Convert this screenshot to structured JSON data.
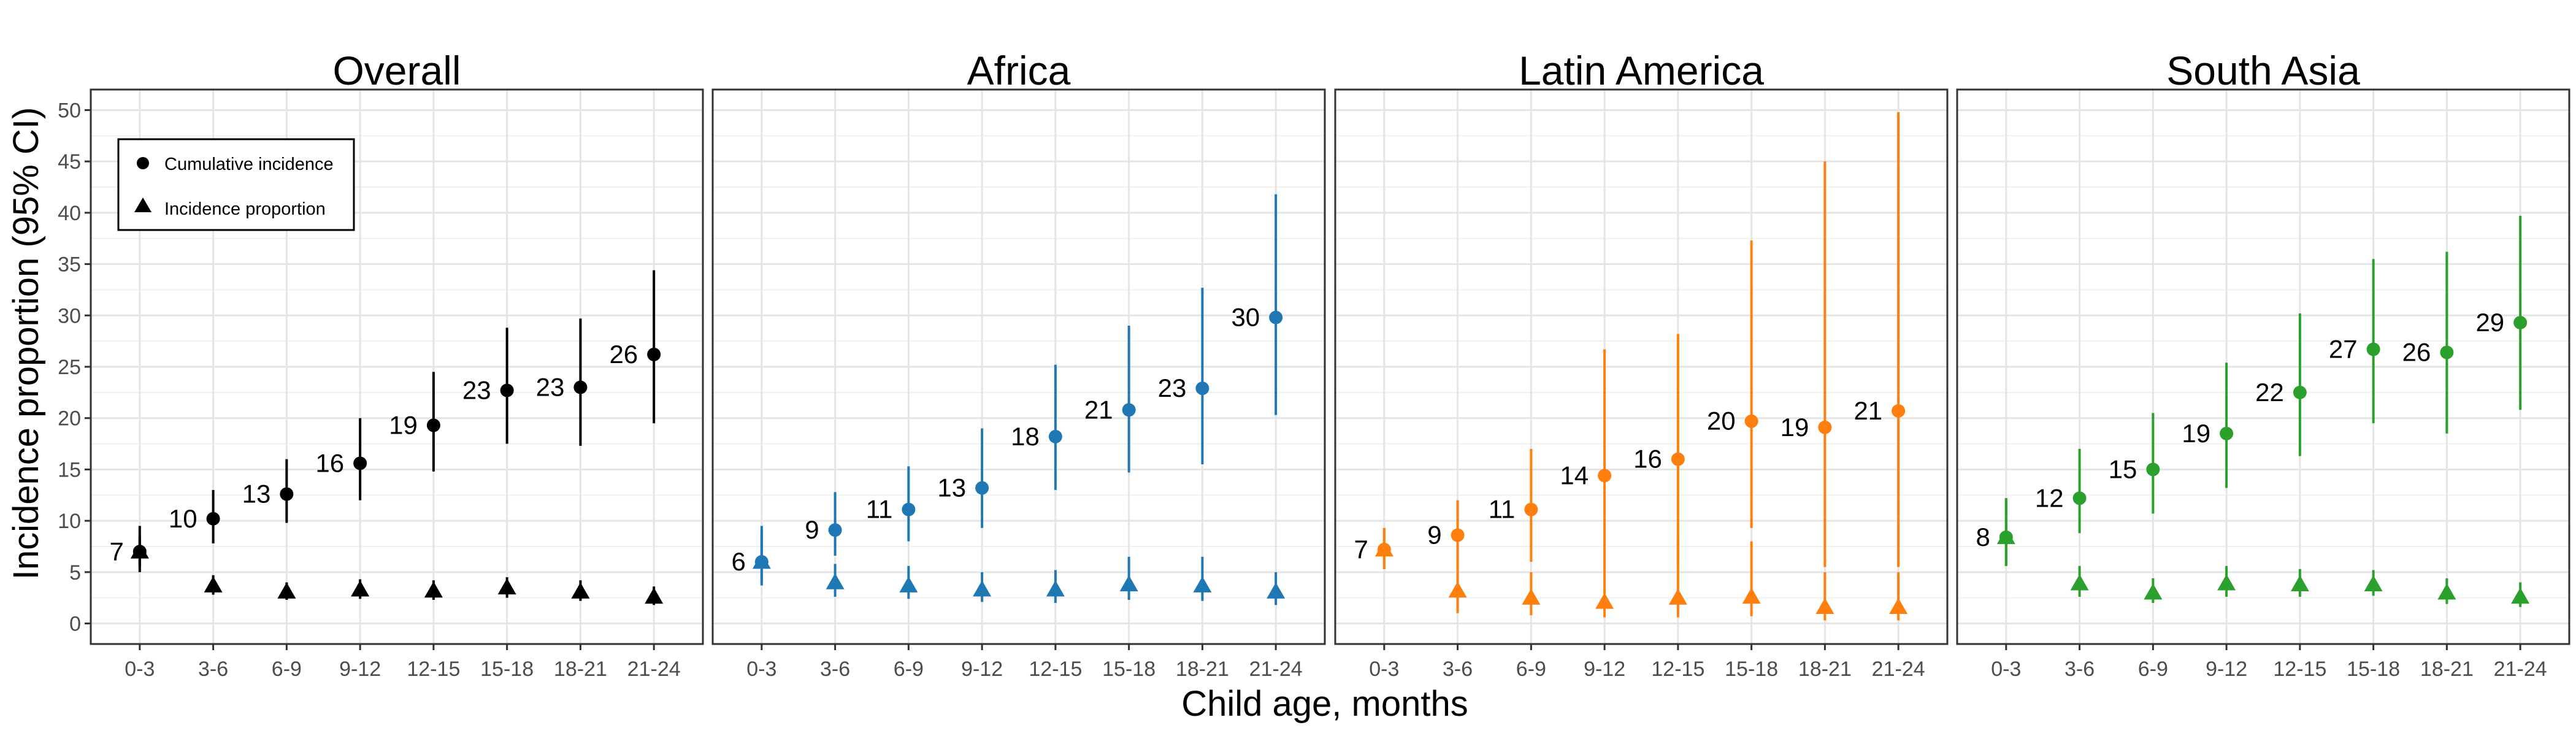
{
  "chart_data": {
    "type": "scatter",
    "ylabel": "Incidence proportion (95% CI)",
    "xlabel": "Child age, months",
    "categories": [
      "0-3",
      "3-6",
      "6-9",
      "9-12",
      "12-15",
      "15-18",
      "18-21",
      "21-24"
    ],
    "ylim": [
      -2,
      52
    ],
    "yticks": [
      0,
      5,
      10,
      15,
      20,
      25,
      30,
      35,
      40,
      45,
      50
    ],
    "grid": true,
    "legend": {
      "placement": "top-left",
      "entries": [
        {
          "label": "Cumulative incidence",
          "marker": "circle"
        },
        {
          "label": "Incidence proportion",
          "marker": "triangle"
        }
      ]
    },
    "panels": [
      {
        "title": "Overall",
        "color": "#000000",
        "cumulative": [
          {
            "x": "0-3",
            "y": 7,
            "lo": 5,
            "hi": 9.5,
            "label": "7"
          },
          {
            "x": "3-6",
            "y": 10.2,
            "lo": 7.8,
            "hi": 13,
            "label": "10"
          },
          {
            "x": "6-9",
            "y": 12.6,
            "lo": 9.8,
            "hi": 16,
            "label": "13"
          },
          {
            "x": "9-12",
            "y": 15.6,
            "lo": 12,
            "hi": 20,
            "label": "16"
          },
          {
            "x": "12-15",
            "y": 19.3,
            "lo": 14.8,
            "hi": 24.5,
            "label": "19"
          },
          {
            "x": "15-18",
            "y": 22.7,
            "lo": 17.5,
            "hi": 28.8,
            "label": "23"
          },
          {
            "x": "18-21",
            "y": 23,
            "lo": 17.3,
            "hi": 29.7,
            "label": "23"
          },
          {
            "x": "21-24",
            "y": 26.2,
            "lo": 19.5,
            "hi": 34.4,
            "label": "26"
          }
        ],
        "incidence": [
          {
            "x": "0-3",
            "y": 7,
            "lo": 5.5,
            "hi": 8.5
          },
          {
            "x": "3-6",
            "y": 3.7,
            "lo": 2.8,
            "hi": 4.7
          },
          {
            "x": "6-9",
            "y": 3.1,
            "lo": 2.3,
            "hi": 4
          },
          {
            "x": "9-12",
            "y": 3.3,
            "lo": 2.4,
            "hi": 4.3
          },
          {
            "x": "12-15",
            "y": 3.2,
            "lo": 2.3,
            "hi": 4.2
          },
          {
            "x": "15-18",
            "y": 3.5,
            "lo": 2.5,
            "hi": 4.5
          },
          {
            "x": "18-21",
            "y": 3.1,
            "lo": 2.2,
            "hi": 4.2
          },
          {
            "x": "21-24",
            "y": 2.6,
            "lo": 1.8,
            "hi": 3.6
          }
        ]
      },
      {
        "title": "Africa",
        "color": "#1f78b4",
        "cumulative": [
          {
            "x": "0-3",
            "y": 6,
            "lo": 3.7,
            "hi": 9.5,
            "label": "6"
          },
          {
            "x": "3-6",
            "y": 9.1,
            "lo": 6.6,
            "hi": 12.8,
            "label": "9"
          },
          {
            "x": "6-9",
            "y": 11.1,
            "lo": 8,
            "hi": 15.3,
            "label": "11"
          },
          {
            "x": "9-12",
            "y": 13.2,
            "lo": 9.3,
            "hi": 19,
            "label": "13"
          },
          {
            "x": "12-15",
            "y": 18.2,
            "lo": 13,
            "hi": 25.2,
            "label": "18"
          },
          {
            "x": "15-18",
            "y": 20.8,
            "lo": 14.7,
            "hi": 29,
            "label": "21"
          },
          {
            "x": "18-21",
            "y": 22.9,
            "lo": 15.5,
            "hi": 32.7,
            "label": "23"
          },
          {
            "x": "21-24",
            "y": 29.8,
            "lo": 20.3,
            "hi": 41.8,
            "label": "30"
          }
        ],
        "incidence": [
          {
            "x": "0-3",
            "y": 6,
            "lo": 4,
            "hi": 9
          },
          {
            "x": "3-6",
            "y": 4,
            "lo": 2.6,
            "hi": 5.8
          },
          {
            "x": "6-9",
            "y": 3.7,
            "lo": 2.4,
            "hi": 5.6
          },
          {
            "x": "9-12",
            "y": 3.3,
            "lo": 2.1,
            "hi": 5
          },
          {
            "x": "12-15",
            "y": 3.3,
            "lo": 2,
            "hi": 5.2
          },
          {
            "x": "15-18",
            "y": 3.8,
            "lo": 2.3,
            "hi": 6.5
          },
          {
            "x": "18-21",
            "y": 3.7,
            "lo": 2.2,
            "hi": 6.5
          },
          {
            "x": "21-24",
            "y": 3.1,
            "lo": 1.8,
            "hi": 5
          }
        ]
      },
      {
        "title": "Latin America",
        "color": "#ff7f0e",
        "cumulative": [
          {
            "x": "0-3",
            "y": 7.2,
            "lo": 5.3,
            "hi": 9.3,
            "label": "7"
          },
          {
            "x": "3-6",
            "y": 8.6,
            "lo": 5.5,
            "hi": 12,
            "label": "9"
          },
          {
            "x": "6-9",
            "y": 11.1,
            "lo": 6,
            "hi": 17,
            "label": "11"
          },
          {
            "x": "9-12",
            "y": 14.4,
            "lo": 5.5,
            "hi": 26.7,
            "label": "14"
          },
          {
            "x": "12-15",
            "y": 16,
            "lo": 5.8,
            "hi": 28.2,
            "label": "16"
          },
          {
            "x": "15-18",
            "y": 19.7,
            "lo": 9.3,
            "hi": 37.3,
            "label": "20"
          },
          {
            "x": "18-21",
            "y": 19.1,
            "lo": 5.5,
            "hi": 45,
            "label": "19"
          },
          {
            "x": "21-24",
            "y": 20.7,
            "lo": 5.5,
            "hi": 49.8,
            "label": "21"
          }
        ],
        "incidence": [
          {
            "x": "0-3",
            "y": 7.2,
            "lo": 5.3,
            "hi": 9.3
          },
          {
            "x": "3-6",
            "y": 3.2,
            "lo": 1,
            "hi": 6
          },
          {
            "x": "6-9",
            "y": 2.5,
            "lo": 0.8,
            "hi": 5
          },
          {
            "x": "9-12",
            "y": 2.1,
            "lo": 0.6,
            "hi": 5.5
          },
          {
            "x": "12-15",
            "y": 2.5,
            "lo": 0.6,
            "hi": 8.5
          },
          {
            "x": "15-18",
            "y": 2.6,
            "lo": 0.7,
            "hi": 8
          },
          {
            "x": "18-21",
            "y": 1.6,
            "lo": 0.3,
            "hi": 5
          },
          {
            "x": "21-24",
            "y": 1.6,
            "lo": 0.3,
            "hi": 5
          }
        ]
      },
      {
        "title": "South Asia",
        "color": "#2ca02c",
        "cumulative": [
          {
            "x": "0-3",
            "y": 8.4,
            "lo": 5.6,
            "hi": 12.2,
            "label": "8"
          },
          {
            "x": "3-6",
            "y": 12.2,
            "lo": 8.8,
            "hi": 17,
            "label": "12"
          },
          {
            "x": "6-9",
            "y": 15,
            "lo": 10.7,
            "hi": 20.5,
            "label": "15"
          },
          {
            "x": "9-12",
            "y": 18.5,
            "lo": 13.2,
            "hi": 25.4,
            "label": "19"
          },
          {
            "x": "12-15",
            "y": 22.5,
            "lo": 16.3,
            "hi": 30.2,
            "label": "22"
          },
          {
            "x": "15-18",
            "y": 26.7,
            "lo": 19.5,
            "hi": 35.5,
            "label": "27"
          },
          {
            "x": "18-21",
            "y": 26.4,
            "lo": 18.5,
            "hi": 36.2,
            "label": "26"
          },
          {
            "x": "21-24",
            "y": 29.3,
            "lo": 20.8,
            "hi": 39.7,
            "label": "29"
          }
        ],
        "incidence": [
          {
            "x": "0-3",
            "y": 8.4,
            "lo": 5.6,
            "hi": 12.2
          },
          {
            "x": "3-6",
            "y": 3.9,
            "lo": 2.6,
            "hi": 5.6
          },
          {
            "x": "6-9",
            "y": 3,
            "lo": 2,
            "hi": 4.4
          },
          {
            "x": "9-12",
            "y": 3.9,
            "lo": 2.6,
            "hi": 5.6
          },
          {
            "x": "12-15",
            "y": 3.8,
            "lo": 2.6,
            "hi": 5.3
          },
          {
            "x": "15-18",
            "y": 3.8,
            "lo": 2.7,
            "hi": 5.2
          },
          {
            "x": "18-21",
            "y": 3,
            "lo": 1.9,
            "hi": 4.4
          },
          {
            "x": "21-24",
            "y": 2.6,
            "lo": 1.6,
            "hi": 4
          }
        ]
      }
    ]
  }
}
